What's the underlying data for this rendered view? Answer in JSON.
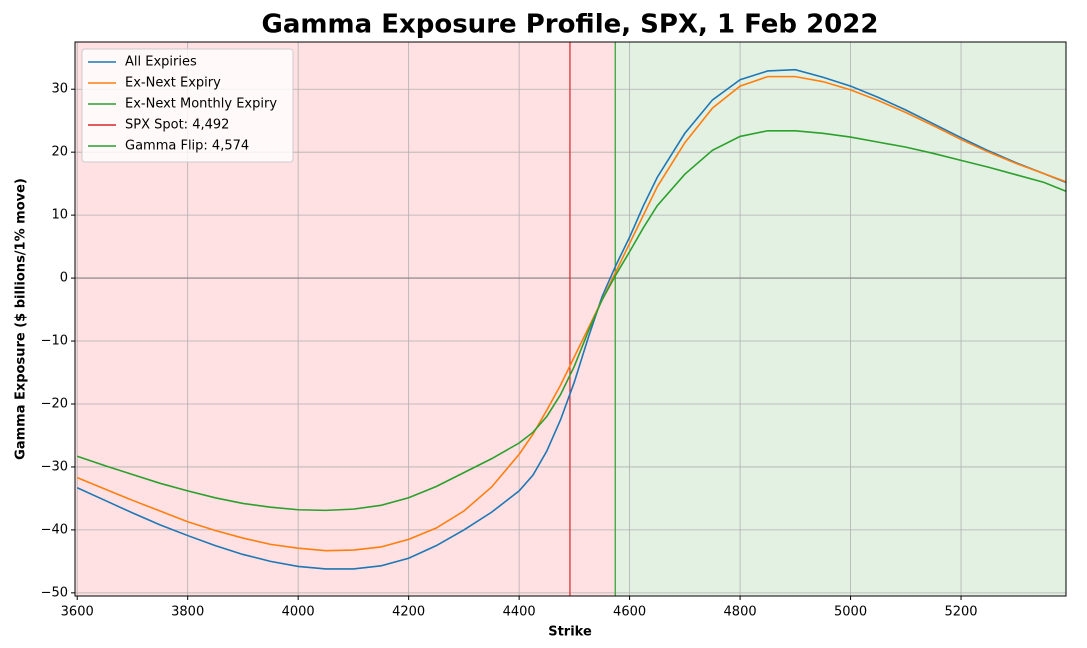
{
  "chart_data": {
    "type": "line",
    "title": "Gamma Exposure Profile, SPX, 1 Feb 2022",
    "x_label": "Strike",
    "y_label": "Gamma Exposure ($ billions/1% move)",
    "x": [
      3600,
      3650,
      3700,
      3750,
      3800,
      3850,
      3900,
      3950,
      4000,
      4050,
      4100,
      4150,
      4200,
      4250,
      4300,
      4350,
      4400,
      4425,
      4450,
      4475,
      4500,
      4525,
      4550,
      4575,
      4600,
      4625,
      4650,
      4700,
      4750,
      4800,
      4850,
      4900,
      4950,
      5000,
      5050,
      5100,
      5150,
      5200,
      5250,
      5300,
      5350,
      5390
    ],
    "series": [
      {
        "name": "All Expiries",
        "color": "#1f77b4",
        "values": [
          -33.3,
          -35.3,
          -37.3,
          -39.2,
          -40.9,
          -42.5,
          -43.9,
          -45.0,
          -45.8,
          -46.2,
          -46.2,
          -45.7,
          -44.5,
          -42.5,
          -40.0,
          -37.2,
          -33.8,
          -31.3,
          -27.5,
          -22.5,
          -16.5,
          -9.5,
          -3.0,
          2.0,
          6.5,
          11.5,
          16.0,
          23.0,
          28.3,
          31.5,
          32.9,
          33.1,
          31.9,
          30.5,
          28.7,
          26.7,
          24.5,
          22.3,
          20.2,
          18.3,
          16.6,
          15.2
        ]
      },
      {
        "name": "Ex-Next Expiry",
        "color": "#ff7f0e",
        "values": [
          -31.7,
          -33.5,
          -35.3,
          -37.0,
          -38.7,
          -40.1,
          -41.3,
          -42.3,
          -42.9,
          -43.3,
          -43.2,
          -42.7,
          -41.5,
          -39.7,
          -37.0,
          -33.2,
          -28.0,
          -24.8,
          -21.0,
          -17.0,
          -12.5,
          -8.0,
          -3.5,
          1.0,
          5.5,
          10.0,
          14.5,
          21.5,
          27.0,
          30.5,
          32.0,
          32.0,
          31.2,
          29.9,
          28.2,
          26.3,
          24.2,
          22.0,
          20.0,
          18.2,
          16.6,
          15.3
        ]
      },
      {
        "name": "Ex-Next Monthly Expiry",
        "color": "#2ca02c",
        "values": [
          -28.3,
          -29.8,
          -31.2,
          -32.6,
          -33.8,
          -34.9,
          -35.8,
          -36.4,
          -36.8,
          -36.9,
          -36.7,
          -36.1,
          -34.9,
          -33.1,
          -30.9,
          -28.7,
          -26.2,
          -24.5,
          -22.0,
          -18.5,
          -14.0,
          -8.5,
          -3.5,
          0.5,
          4.2,
          8.0,
          11.5,
          16.5,
          20.3,
          22.5,
          23.4,
          23.4,
          23.0,
          22.4,
          21.6,
          20.8,
          19.8,
          18.7,
          17.6,
          16.4,
          15.2,
          13.8
        ]
      }
    ],
    "vlines": [
      {
        "name": "SPX Spot: 4,492",
        "value": 4492,
        "color": "#d62728"
      },
      {
        "name": "Gamma Flip: 4,574",
        "value": 4574,
        "color": "#2ca02c"
      }
    ],
    "hlines": [
      0
    ],
    "shade_below_color": "#ffe0e3",
    "shade_above_color": "#e3f1e3",
    "xlim": [
      3596,
      5390
    ],
    "ylim": [
      -50.5,
      37.5
    ],
    "xticks": [
      3600,
      3800,
      4000,
      4200,
      4400,
      4600,
      4800,
      5000,
      5200
    ],
    "yticks": [
      {
        "value": -50,
        "label": "−50"
      },
      {
        "value": -40,
        "label": "−40"
      },
      {
        "value": -30,
        "label": "−30"
      },
      {
        "value": -20,
        "label": "−20"
      },
      {
        "value": -10,
        "label": "−10"
      },
      0,
      10,
      20,
      30
    ],
    "grid": true,
    "legend": "upper left"
  }
}
